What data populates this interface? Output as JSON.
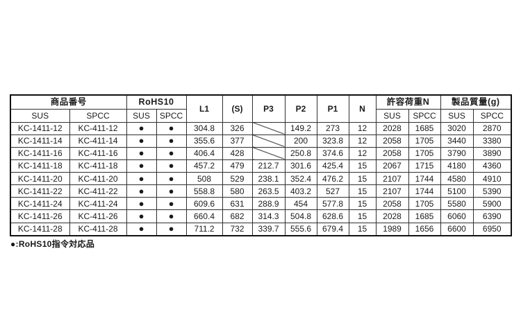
{
  "table": {
    "header": {
      "group_product_number": "商品番号",
      "group_rohs10": "RoHS10",
      "group_allowable_load": "許容荷重N",
      "group_product_mass": "製品質量(g)",
      "sub_sus": "SUS",
      "sub_spcc": "SPCC",
      "col_l1": "L1",
      "col_s": "(S)",
      "col_p3": "P3",
      "col_p2": "P2",
      "col_p1": "P1",
      "col_n": "N"
    },
    "dot": "●",
    "rows": [
      {
        "sus_model": "KC-1411-12",
        "spcc_model": "KC-411-12",
        "rohs_sus": true,
        "rohs_spcc": true,
        "l1": "304.8",
        "s": "326",
        "p3": null,
        "p2": "149.2",
        "p1": "273",
        "n": "12",
        "load_sus": "2028",
        "load_spcc": "1685",
        "mass_sus": "3020",
        "mass_spcc": "2870"
      },
      {
        "sus_model": "KC-1411-14",
        "spcc_model": "KC-411-14",
        "rohs_sus": true,
        "rohs_spcc": true,
        "l1": "355.6",
        "s": "377",
        "p3": null,
        "p2": "200",
        "p1": "323.8",
        "n": "12",
        "load_sus": "2058",
        "load_spcc": "1705",
        "mass_sus": "3440",
        "mass_spcc": "3380"
      },
      {
        "sus_model": "KC-1411-16",
        "spcc_model": "KC-411-16",
        "rohs_sus": true,
        "rohs_spcc": true,
        "l1": "406.4",
        "s": "428",
        "p3": null,
        "p2": "250.8",
        "p1": "374.6",
        "n": "12",
        "load_sus": "2058",
        "load_spcc": "1705",
        "mass_sus": "3790",
        "mass_spcc": "3890"
      },
      {
        "sus_model": "KC-1411-18",
        "spcc_model": "KC-411-18",
        "rohs_sus": true,
        "rohs_spcc": true,
        "l1": "457.2",
        "s": "479",
        "p3": "212.7",
        "p2": "301.6",
        "p1": "425.4",
        "n": "15",
        "load_sus": "2067",
        "load_spcc": "1715",
        "mass_sus": "4180",
        "mass_spcc": "4360"
      },
      {
        "sus_model": "KC-1411-20",
        "spcc_model": "KC-411-20",
        "rohs_sus": true,
        "rohs_spcc": true,
        "l1": "508",
        "s": "529",
        "p3": "238.1",
        "p2": "352.4",
        "p1": "476.2",
        "n": "15",
        "load_sus": "2107",
        "load_spcc": "1744",
        "mass_sus": "4580",
        "mass_spcc": "4910"
      },
      {
        "sus_model": "KC-1411-22",
        "spcc_model": "KC-411-22",
        "rohs_sus": true,
        "rohs_spcc": true,
        "l1": "558.8",
        "s": "580",
        "p3": "263.5",
        "p2": "403.2",
        "p1": "527",
        "n": "15",
        "load_sus": "2107",
        "load_spcc": "1744",
        "mass_sus": "5100",
        "mass_spcc": "5390"
      },
      {
        "sus_model": "KC-1411-24",
        "spcc_model": "KC-411-24",
        "rohs_sus": true,
        "rohs_spcc": true,
        "l1": "609.6",
        "s": "631",
        "p3": "288.9",
        "p2": "454",
        "p1": "577.8",
        "n": "15",
        "load_sus": "2058",
        "load_spcc": "1705",
        "mass_sus": "5580",
        "mass_spcc": "5900"
      },
      {
        "sus_model": "KC-1411-26",
        "spcc_model": "KC-411-26",
        "rohs_sus": true,
        "rohs_spcc": true,
        "l1": "660.4",
        "s": "682",
        "p3": "314.3",
        "p2": "504.8",
        "p1": "628.6",
        "n": "15",
        "load_sus": "2028",
        "load_spcc": "1685",
        "mass_sus": "6060",
        "mass_spcc": "6390"
      },
      {
        "sus_model": "KC-1411-28",
        "spcc_model": "KC-411-28",
        "rohs_sus": true,
        "rohs_spcc": true,
        "l1": "711.2",
        "s": "732",
        "p3": "339.7",
        "p2": "555.6",
        "p1": "679.4",
        "n": "15",
        "load_sus": "1989",
        "load_spcc": "1656",
        "mass_sus": "6600",
        "mass_spcc": "6950"
      }
    ]
  },
  "footnote": "●:RoHS10指令対応品"
}
